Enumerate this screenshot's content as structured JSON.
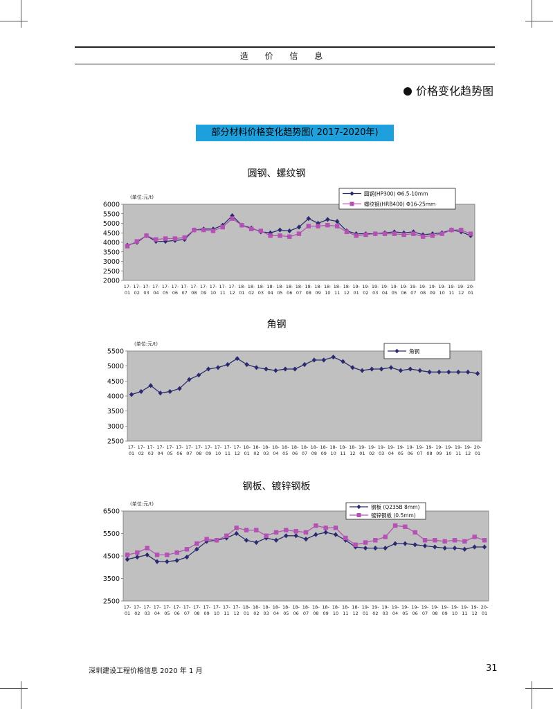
{
  "header": {
    "title": "造 价 信 息"
  },
  "section": {
    "title": "价格变化趋势图"
  },
  "banner": {
    "text": "部分材料价格变化趋势图( 2017-2020年)"
  },
  "colors": {
    "plot_bg": "#c0c0c0",
    "series_dark": "#2b2a6e",
    "series_pink": "#b452b4",
    "banner": "#1ea0dd"
  },
  "footer": {
    "publication": "深圳建设工程价格信息   2020 年 1 月",
    "page": "31"
  },
  "chart_data": [
    {
      "type": "line",
      "title": "圆钢、螺纹钢",
      "unit_label": "(单位:元/t)",
      "ylim": [
        2000,
        6000
      ],
      "yticks": [
        2000,
        2500,
        3000,
        3500,
        4000,
        4500,
        5000,
        5500,
        6000
      ],
      "legend_position": "top-right",
      "categories": [
        "17-01",
        "17-02",
        "17-03",
        "17-04",
        "17-05",
        "17-06",
        "17-07",
        "17-08",
        "17-09",
        "17-10",
        "17-11",
        "17-12",
        "18-01",
        "18-02",
        "18-03",
        "18-04",
        "18-05",
        "18-06",
        "18-07",
        "18-08",
        "18-09",
        "18-10",
        "18-11",
        "18-12",
        "19-01",
        "19-02",
        "19-03",
        "19-04",
        "19-05",
        "19-06",
        "19-07",
        "19-08",
        "19-09",
        "19-10",
        "19-11",
        "19-12",
        "20-01"
      ],
      "series": [
        {
          "name": "圆钢(HP300) Φ6.5-10mm",
          "marker": "diamond",
          "values": [
            3850,
            4000,
            4350,
            4050,
            4050,
            4100,
            4150,
            4650,
            4700,
            4700,
            4900,
            5400,
            4900,
            4750,
            4550,
            4500,
            4650,
            4600,
            4800,
            5250,
            5000,
            5200,
            5100,
            4600,
            4450,
            4450,
            4450,
            4500,
            4550,
            4500,
            4550,
            4400,
            4450,
            4500,
            4650,
            4550,
            4350
          ]
        },
        {
          "name": "螺纹钢(HRB400) Φ16-25mm",
          "marker": "square",
          "values": [
            3800,
            4050,
            4350,
            4150,
            4200,
            4200,
            4250,
            4650,
            4650,
            4600,
            4800,
            5250,
            4900,
            4700,
            4600,
            4350,
            4350,
            4300,
            4450,
            4850,
            4850,
            4900,
            4850,
            4550,
            4350,
            4400,
            4450,
            4450,
            4450,
            4400,
            4450,
            4300,
            4350,
            4450,
            4650,
            4650,
            4450
          ]
        }
      ]
    },
    {
      "type": "line",
      "title": "角钢",
      "unit_label": "(单位:元/t)",
      "ylim": [
        2500,
        5500
      ],
      "yticks": [
        2500,
        3000,
        3500,
        4000,
        4500,
        5000,
        5500
      ],
      "legend_position": "top-right",
      "categories": [
        "17-01",
        "17-02",
        "17-03",
        "17-04",
        "17-05",
        "17-06",
        "17-07",
        "17-08",
        "17-09",
        "17-10",
        "17-11",
        "17-12",
        "18-01",
        "18-02",
        "18-03",
        "18-04",
        "18-05",
        "18-06",
        "18-07",
        "18-08",
        "18-09",
        "18-10",
        "18-11",
        "18-12",
        "19-01",
        "19-02",
        "19-03",
        "19-04",
        "19-05",
        "19-06",
        "19-07",
        "19-08",
        "19-09",
        "19-10",
        "19-11",
        "19-12",
        "20-01"
      ],
      "series": [
        {
          "name": "角钢",
          "marker": "diamond",
          "values": [
            4050,
            4150,
            4350,
            4100,
            4150,
            4250,
            4550,
            4700,
            4900,
            4950,
            5050,
            5250,
            5050,
            4950,
            4900,
            4850,
            4900,
            4900,
            5050,
            5200,
            5200,
            5300,
            5150,
            4950,
            4850,
            4900,
            4900,
            4950,
            4850,
            4900,
            4850,
            4800,
            4800,
            4800,
            4800,
            4800,
            4750
          ]
        }
      ]
    },
    {
      "type": "line",
      "title": "钢板、镀锌钢板",
      "unit_label": "(单位:元/t)",
      "ylim": [
        2500,
        6500
      ],
      "yticks": [
        2500,
        3500,
        4500,
        5500,
        6500
      ],
      "legend_position": "top-right",
      "categories": [
        "17-01",
        "17-02",
        "17-03",
        "17-04",
        "17-05",
        "17-06",
        "17-07",
        "17-08",
        "17-09",
        "17-10",
        "17-11",
        "17-12",
        "18-01",
        "18-02",
        "18-03",
        "18-04",
        "18-05",
        "18-06",
        "18-07",
        "18-08",
        "18-09",
        "18-10",
        "18-11",
        "18-12",
        "19-01",
        "19-02",
        "19-03",
        "19-04",
        "19-05",
        "19-06",
        "19-07",
        "19-08",
        "19-09",
        "19-10",
        "19-11",
        "19-12",
        "20-01"
      ],
      "series": [
        {
          "name": "钢板 (Q235B 8mm)",
          "marker": "diamond",
          "values": [
            4350,
            4450,
            4550,
            4250,
            4250,
            4300,
            4450,
            4800,
            5150,
            5200,
            5300,
            5500,
            5200,
            5100,
            5300,
            5200,
            5400,
            5400,
            5250,
            5450,
            5550,
            5450,
            5200,
            4900,
            4850,
            4850,
            4850,
            5050,
            5050,
            5000,
            4950,
            4900,
            4850,
            4850,
            4800,
            4900,
            4900
          ]
        },
        {
          "name": "镀锌钢板 (0.5mm)",
          "marker": "square",
          "values": [
            4550,
            4650,
            4850,
            4550,
            4550,
            4650,
            4800,
            5050,
            5250,
            5200,
            5400,
            5750,
            5650,
            5650,
            5400,
            5550,
            5650,
            5600,
            5550,
            5850,
            5750,
            5750,
            5300,
            5000,
            5100,
            5200,
            5350,
            5850,
            5800,
            5550,
            5200,
            5200,
            5150,
            5200,
            5150,
            5350,
            5200
          ]
        }
      ]
    }
  ]
}
